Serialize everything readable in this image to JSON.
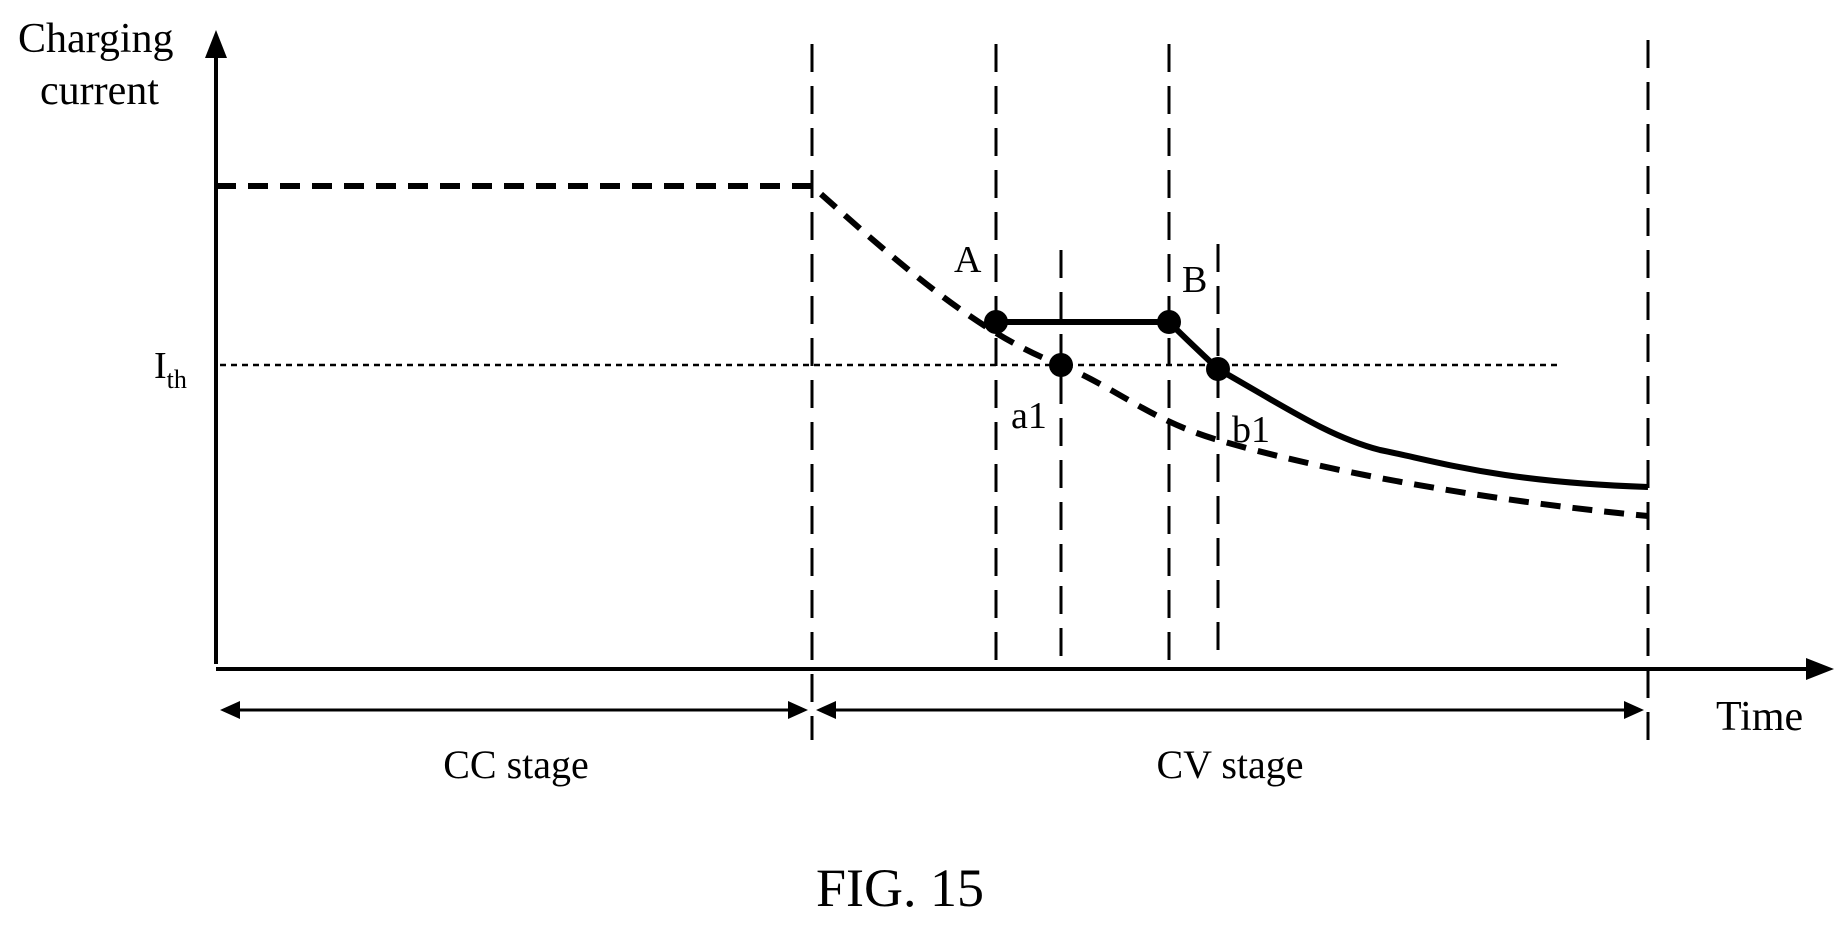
{
  "axes": {
    "y_title_line1": "Charging",
    "y_title_line2": "current",
    "x_title": "Time"
  },
  "threshold": {
    "label_main": "I",
    "label_sub": "th"
  },
  "points": {
    "A": "A",
    "B": "B",
    "a1": "a1",
    "b1": "b1"
  },
  "stages": {
    "cc": "CC stage",
    "cv": "CV stage"
  },
  "caption": "FIG. 15",
  "colors": {
    "ink": "#000000",
    "background": "#ffffff"
  }
}
